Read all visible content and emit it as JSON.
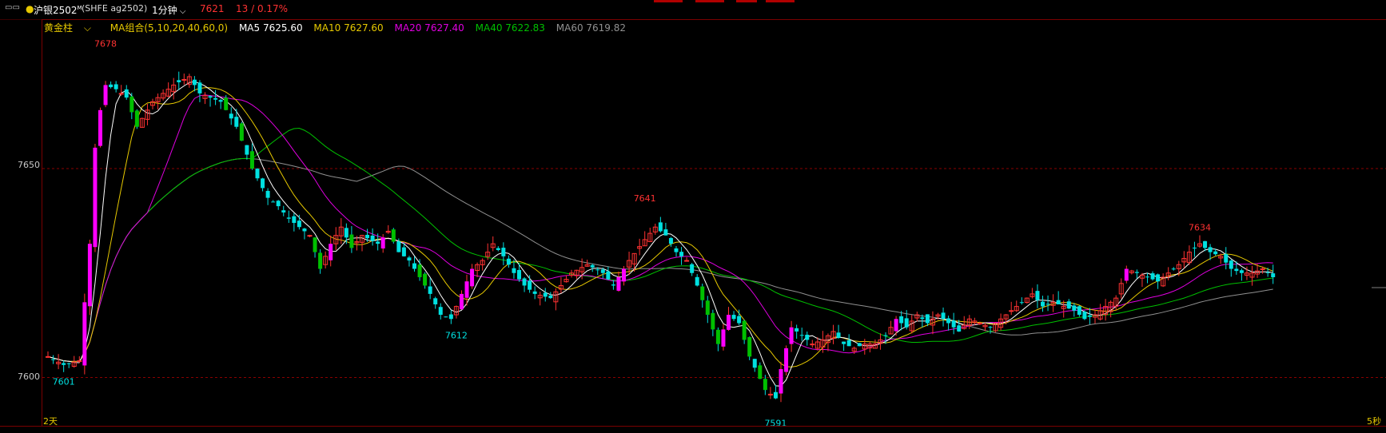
{
  "header": {
    "symbol": "沪银2502",
    "symbol_sup": "M",
    "code": "(SHFE ag2502)",
    "period": "1分钟",
    "price": "7621",
    "change": "13 / 0.17%"
  },
  "legend": {
    "style_label": "黄金柱",
    "ma_group": "MA组合(5,10,20,40,60,0)",
    "ma5": "MA5 7625.60",
    "ma10": "MA10 7627.60",
    "ma20": "MA20 7627.40",
    "ma40": "MA40 7622.83",
    "ma60": "MA60 7619.82"
  },
  "footer": {
    "left": "2天",
    "right": "5秒"
  },
  "colors": {
    "up": "#ff3232",
    "down": "#00e0e0",
    "down_big": "#00c000",
    "up_big": "#ff00ff",
    "ma5": "#ffffff",
    "ma10": "#e6c800",
    "ma20": "#e000e0",
    "ma40": "#00c000",
    "ma60": "#909090",
    "grid": "#8a0000"
  },
  "chart_data": {
    "type": "candlestick",
    "y_ticks": [
      7650,
      7600
    ],
    "ylim": [
      7589,
      7685
    ],
    "annotations": [
      {
        "label": "7678",
        "i": 11,
        "kind": "high"
      },
      {
        "label": "7601",
        "i": 3,
        "kind": "low"
      },
      {
        "label": "7612",
        "i": 78,
        "kind": "low"
      },
      {
        "label": "7641",
        "i": 114,
        "kind": "high"
      },
      {
        "label": "7591",
        "i": 139,
        "kind": "low"
      },
      {
        "label": "7634",
        "i": 220,
        "kind": "high"
      }
    ],
    "close_keypoints": [
      [
        0,
        7605
      ],
      [
        3,
        7603
      ],
      [
        6,
        7604
      ],
      [
        7,
        7618
      ],
      [
        8,
        7632
      ],
      [
        9,
        7655
      ],
      [
        10,
        7664
      ],
      [
        11,
        7670
      ],
      [
        13,
        7669
      ],
      [
        15,
        7667
      ],
      [
        17,
        7660
      ],
      [
        20,
        7666
      ],
      [
        24,
        7670
      ],
      [
        27,
        7672
      ],
      [
        29,
        7668
      ],
      [
        33,
        7666
      ],
      [
        36,
        7660
      ],
      [
        39,
        7650
      ],
      [
        42,
        7643
      ],
      [
        44,
        7641
      ],
      [
        46,
        7638
      ],
      [
        48,
        7636
      ],
      [
        50,
        7634
      ],
      [
        52,
        7626
      ],
      [
        54,
        7632
      ],
      [
        56,
        7636
      ],
      [
        58,
        7631
      ],
      [
        60,
        7634
      ],
      [
        63,
        7632
      ],
      [
        65,
        7635
      ],
      [
        67,
        7630
      ],
      [
        69,
        7628
      ],
      [
        71,
        7624
      ],
      [
        73,
        7620
      ],
      [
        75,
        7615
      ],
      [
        77,
        7614
      ],
      [
        79,
        7620
      ],
      [
        81,
        7626
      ],
      [
        83,
        7628
      ],
      [
        85,
        7632
      ],
      [
        87,
        7629
      ],
      [
        89,
        7625
      ],
      [
        91,
        7622
      ],
      [
        93,
        7620
      ],
      [
        96,
        7619
      ],
      [
        98,
        7622
      ],
      [
        100,
        7625
      ],
      [
        103,
        7627
      ],
      [
        106,
        7625
      ],
      [
        108,
        7622
      ],
      [
        111,
        7628
      ],
      [
        114,
        7633
      ],
      [
        116,
        7636
      ],
      [
        118,
        7634
      ],
      [
        120,
        7630
      ],
      [
        122,
        7628
      ],
      [
        124,
        7622
      ],
      [
        126,
        7615
      ],
      [
        128,
        7608
      ],
      [
        130,
        7615
      ],
      [
        132,
        7613
      ],
      [
        134,
        7605
      ],
      [
        137,
        7597
      ],
      [
        139,
        7595
      ],
      [
        140,
        7602
      ],
      [
        142,
        7612
      ],
      [
        144,
        7610
      ],
      [
        146,
        7608
      ],
      [
        148,
        7609
      ],
      [
        150,
        7611
      ],
      [
        152,
        7608
      ],
      [
        154,
        7607
      ],
      [
        156,
        7608
      ],
      [
        158,
        7608
      ],
      [
        160,
        7610
      ],
      [
        162,
        7614
      ],
      [
        164,
        7612
      ],
      [
        166,
        7615
      ],
      [
        168,
        7613
      ],
      [
        170,
        7615
      ],
      [
        172,
        7613
      ],
      [
        174,
        7611
      ],
      [
        176,
        7614
      ],
      [
        178,
        7613
      ],
      [
        180,
        7612
      ],
      [
        182,
        7614
      ],
      [
        184,
        7616
      ],
      [
        186,
        7618
      ],
      [
        188,
        7620
      ],
      [
        190,
        7617
      ],
      [
        192,
        7618
      ],
      [
        194,
        7617
      ],
      [
        196,
        7616
      ],
      [
        198,
        7614
      ],
      [
        200,
        7615
      ],
      [
        202,
        7617
      ],
      [
        204,
        7619
      ],
      [
        206,
        7626
      ],
      [
        208,
        7625
      ],
      [
        210,
        7624
      ],
      [
        212,
        7623
      ],
      [
        214,
        7625
      ],
      [
        216,
        7627
      ],
      [
        218,
        7630
      ],
      [
        220,
        7632
      ],
      [
        222,
        7630
      ],
      [
        224,
        7629
      ],
      [
        226,
        7626
      ],
      [
        228,
        7625
      ],
      [
        230,
        7625
      ],
      [
        232,
        7626
      ],
      [
        234,
        7624
      ]
    ]
  }
}
